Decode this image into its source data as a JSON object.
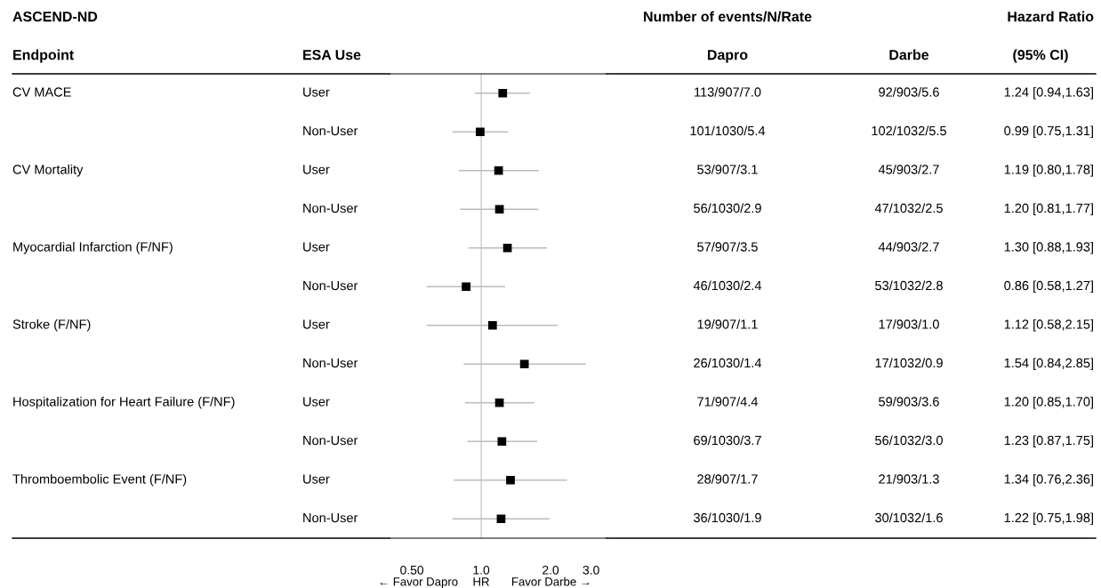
{
  "chart_data": {
    "type": "scatter",
    "orientation": "horizontal",
    "title": "ASCEND-ND",
    "categories": [
      "User",
      "Non-User",
      "User",
      "Non-User",
      "User",
      "Non-User",
      "User",
      "Non-User",
      "User",
      "Non-User",
      "User",
      "Non-User"
    ],
    "series": [
      {
        "color": "#000000",
        "marker": "square",
        "values": [
          1.24,
          0.99,
          1.19,
          1.2,
          1.3,
          0.86,
          1.12,
          1.54,
          1.2,
          1.23,
          1.34,
          1.22
        ],
        "errors": [
          [
            0.94,
            1.63
          ],
          [
            0.75,
            1.31
          ],
          [
            0.8,
            1.78
          ],
          [
            0.81,
            1.77
          ],
          [
            0.88,
            1.93
          ],
          [
            0.58,
            1.27
          ],
          [
            0.58,
            2.15
          ],
          [
            0.84,
            2.85
          ],
          [
            0.85,
            1.7
          ],
          [
            0.87,
            1.75
          ],
          [
            0.76,
            2.36
          ],
          [
            0.75,
            1.98
          ]
        ],
        "value_labels": [
          "1.24 [0.94,1.63]",
          "0.99 [0.75,1.31]",
          "1.19 [0.80,1.78]",
          "1.20 [0.81,1.77]",
          "1.30 [0.88,1.93]",
          "0.86 [0.58,1.27]",
          "1.12 [0.58,2.15]",
          "1.54 [0.84,2.85]",
          "1.20 [0.85,1.70]",
          "1.23 [0.87,1.75]",
          "1.34 [0.76,2.36]",
          "1.22 [0.75,1.98]"
        ]
      }
    ],
    "log": "x",
    "xlim": [
      0.4,
      3.5
    ],
    "xticks": [
      {
        "value": 0.5,
        "label": "0.50"
      },
      {
        "value": 1,
        "label": "1.0"
      },
      {
        "value": 2,
        "label": "2.0"
      },
      {
        "value": 3,
        "label": "3.0"
      }
    ],
    "ref_lines": [
      {
        "axis": "x",
        "value": 1,
        "color": "#cccccc"
      }
    ],
    "annotations": [
      "Number of events/N/Rate",
      "Hazard Ratio",
      "Endpoint",
      "ESA Use",
      "Dapro",
      "Darbe",
      "(95% CI)",
      "CV MACE",
      "CV Mortality",
      "Myocardial Infarction (F/NF)",
      "Stroke (F/NF)",
      "Hospitalization for Heart Failure (F/NF)",
      "Thromboembolic Event (F/NF)",
      "113/907/7.0",
      "101/1030/5.4",
      "53/907/3.1",
      "56/1030/2.9",
      "57/907/3.5",
      "46/1030/2.4",
      "19/907/1.1",
      "26/1030/1.4",
      "71/907/4.4",
      "69/1030/3.7",
      "28/907/1.7",
      "36/1030/1.9",
      "92/903/5.6",
      "102/1032/5.5",
      "45/903/2.7",
      "47/1032/2.5",
      "44/903/2.7",
      "53/1032/2.8",
      "17/903/1.0",
      "17/1032/0.9",
      "59/903/3.6",
      "56/1032/3.0",
      "21/903/1.3",
      "30/1032/1.6",
      "← Favor Dapro",
      "HR",
      "Favor Darbe →"
    ]
  }
}
